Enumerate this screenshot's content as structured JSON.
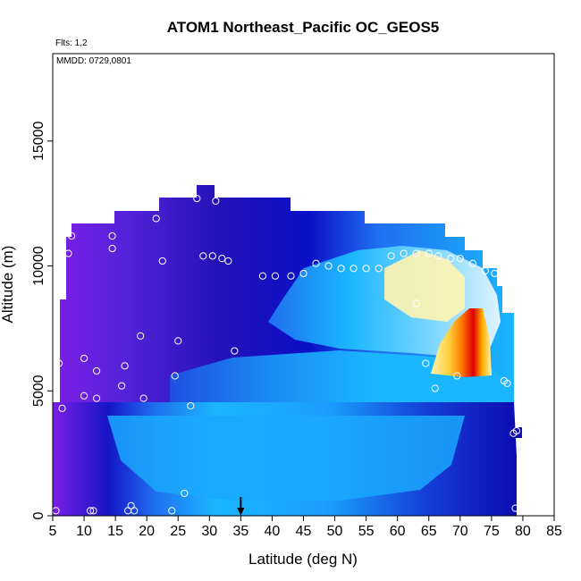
{
  "chart_data": {
    "type": "heatmap",
    "title": "ATOM1 Northeast_Pacific OC_GEOS5",
    "annotations": [
      "Flts: 1,2",
      "MMDD: 0729,0801"
    ],
    "xlabel": "Latitude (deg N)",
    "ylabel": "Altitude (m)",
    "xlim": [
      5,
      85
    ],
    "ylim": [
      0,
      18500
    ],
    "xticks": [
      5,
      10,
      15,
      20,
      25,
      30,
      35,
      40,
      45,
      50,
      55,
      60,
      65,
      70,
      75,
      80,
      85
    ],
    "yticks": [
      0,
      5000,
      10000,
      15000
    ],
    "grid": false,
    "legend": "none",
    "marker_latitude": 35,
    "colors": {
      "very_low": "#7a1fe6",
      "low": "#1515c8",
      "mid_low": "#1f6ff0",
      "mid": "#1ab6ff",
      "mid_high": "#a6e4ff",
      "high": "#fff4b0",
      "very_high": "#ffb000",
      "max": "#e00000"
    },
    "flight_points": [
      [
        5.5,
        200
      ],
      [
        6,
        6100
      ],
      [
        6.5,
        4300
      ],
      [
        7.5,
        10500
      ],
      [
        8,
        11200
      ],
      [
        10,
        6300
      ],
      [
        10,
        4800
      ],
      [
        11,
        200
      ],
      [
        11.5,
        200
      ],
      [
        12,
        5800
      ],
      [
        12,
        4700
      ],
      [
        14.5,
        11200
      ],
      [
        14.5,
        10700
      ],
      [
        16,
        5200
      ],
      [
        16.5,
        6000
      ],
      [
        17,
        200
      ],
      [
        17.5,
        400
      ],
      [
        18,
        200
      ],
      [
        19,
        7200
      ],
      [
        19.5,
        4700
      ],
      [
        21.5,
        11900
      ],
      [
        22.5,
        10200
      ],
      [
        24,
        200
      ],
      [
        24.5,
        5600
      ],
      [
        25,
        7000
      ],
      [
        26,
        900
      ],
      [
        27,
        4400
      ],
      [
        28,
        12700
      ],
      [
        29,
        10400
      ],
      [
        30.5,
        10400
      ],
      [
        31,
        12600
      ],
      [
        32,
        10300
      ],
      [
        33,
        10200
      ],
      [
        34,
        6600
      ],
      [
        38.5,
        9600
      ],
      [
        40.5,
        9600
      ],
      [
        43,
        9600
      ],
      [
        45,
        9700
      ],
      [
        47,
        10100
      ],
      [
        49,
        10000
      ],
      [
        51,
        9900
      ],
      [
        53,
        9900
      ],
      [
        55,
        9900
      ],
      [
        57,
        9900
      ],
      [
        59,
        10400
      ],
      [
        61,
        10500
      ],
      [
        63,
        10500
      ],
      [
        65,
        10500
      ],
      [
        66.5,
        10400
      ],
      [
        68.5,
        10300
      ],
      [
        69.5,
        5600
      ],
      [
        70,
        10300
      ],
      [
        72,
        10100
      ],
      [
        74,
        9800
      ],
      [
        75.5,
        9700
      ],
      [
        63,
        8500
      ],
      [
        64.5,
        6100
      ],
      [
        66,
        5100
      ],
      [
        77,
        5400
      ],
      [
        77.5,
        5300
      ],
      [
        78.5,
        3300
      ],
      [
        79,
        3400
      ],
      [
        78.8,
        300
      ]
    ]
  }
}
